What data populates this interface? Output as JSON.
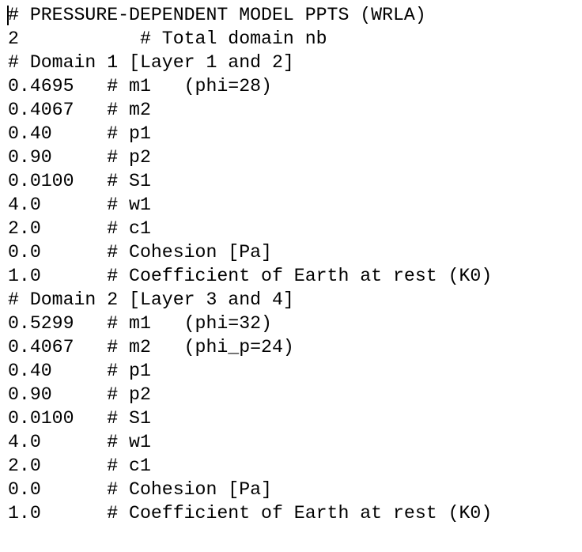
{
  "lines": [
    "# PRESSURE-DEPENDENT MODEL PPTS (WRLA)",
    "2           # Total domain nb",
    "# Domain 1 [Layer 1 and 2]",
    "0.4695   # m1   (phi=28)",
    "0.4067   # m2",
    "0.40     # p1",
    "0.90     # p2",
    "0.0100   # S1",
    "4.0      # w1",
    "2.0      # c1",
    "0.0      # Cohesion [Pa]",
    "1.0      # Coefficient of Earth at rest (K0)",
    "# Domain 2 [Layer 3 and 4]",
    "0.5299   # m1   (phi=32)",
    "0.4067   # m2   (phi_p=24)",
    "0.40     # p1",
    "0.90     # p2",
    "0.0100   # S1",
    "4.0      # w1",
    "2.0      # c1",
    "0.0      # Cohesion [Pa]",
    "1.0      # Coefficient of Earth at rest (K0)"
  ]
}
